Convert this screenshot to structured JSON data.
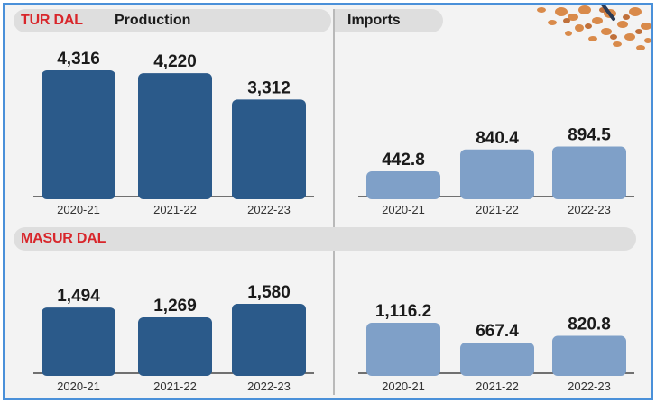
{
  "colors": {
    "production_bar": "#2b5a8a",
    "imports_bar": "#7fa0c8",
    "accent_red": "#d8262b"
  },
  "sections": [
    {
      "tag": "TUR DAL",
      "production_heading": "Production",
      "imports_heading": "Imports"
    },
    {
      "tag": "MASUR DAL"
    }
  ],
  "chart_data": [
    {
      "type": "bar",
      "title": "TUR DAL Production",
      "categories": [
        "2020-21",
        "2021-22",
        "2022-23"
      ],
      "values": [
        4316,
        4220,
        3312
      ],
      "labels": [
        "4,316",
        "4,220",
        "3,312"
      ]
    },
    {
      "type": "bar",
      "title": "TUR DAL Imports",
      "categories": [
        "2020-21",
        "2021-22",
        "2022-23"
      ],
      "values": [
        442.8,
        840.4,
        894.5
      ],
      "labels": [
        "442.8",
        "840.4",
        "894.5"
      ]
    },
    {
      "type": "bar",
      "title": "MASUR DAL Production",
      "categories": [
        "2020-21",
        "2021-22",
        "2022-23"
      ],
      "values": [
        1494,
        1269,
        1580
      ],
      "labels": [
        "1,494",
        "1,269",
        "1,580"
      ]
    },
    {
      "type": "bar",
      "title": "MASUR DAL Imports",
      "categories": [
        "2020-21",
        "2021-22",
        "2022-23"
      ],
      "values": [
        1116.2,
        667.4,
        820.8
      ],
      "labels": [
        "1,116.2",
        "667.4",
        "820.8"
      ]
    }
  ]
}
